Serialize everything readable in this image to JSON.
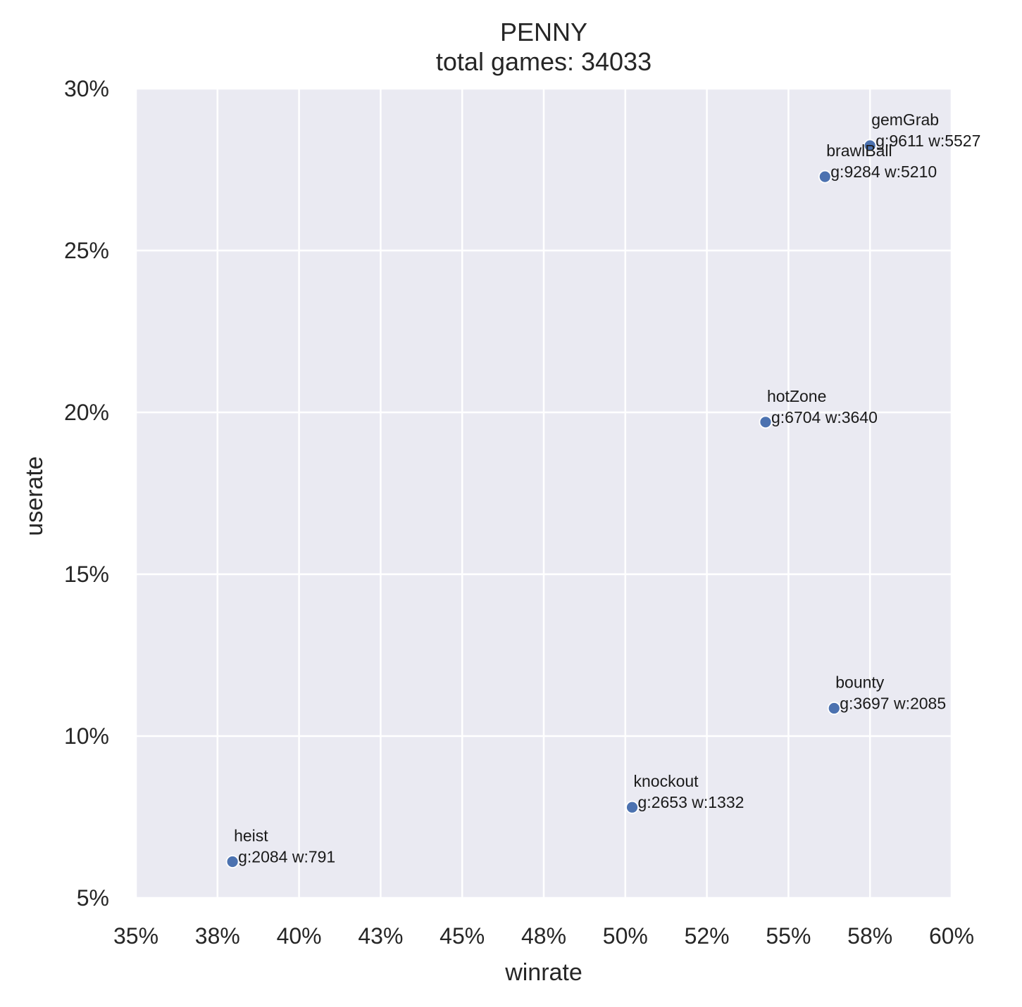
{
  "chart_data": {
    "type": "scatter",
    "title": "PENNY",
    "subtitle": "total games: 34033",
    "xlabel": "winrate",
    "ylabel": "userate",
    "xlim": [
      35,
      60
    ],
    "ylim": [
      5,
      30
    ],
    "grid": true,
    "x_ticks": [
      35,
      37.5,
      40,
      42.5,
      45,
      47.5,
      50,
      52.5,
      55,
      57.5,
      60
    ],
    "x_tick_labels": [
      "35%",
      "38%",
      "40%",
      "43%",
      "45%",
      "48%",
      "50%",
      "52%",
      "55%",
      "58%",
      "60%"
    ],
    "y_ticks": [
      5,
      10,
      15,
      20,
      25,
      30
    ],
    "y_tick_labels": [
      "5%",
      "10%",
      "15%",
      "20%",
      "25%",
      "30%"
    ],
    "colors": {
      "background": "#eaeaf2",
      "grid": "#ffffff",
      "point": "#4c72b0",
      "point_edge": "#ffffff"
    },
    "points": [
      {
        "name": "gemGrab",
        "stats": "g:9611 w:5527",
        "x": 57.5,
        "y": 28.24
      },
      {
        "name": "brawlBall",
        "stats": "g:9284 w:5210",
        "x": 56.12,
        "y": 27.28
      },
      {
        "name": "hotZone",
        "stats": "g:6704 w:3640",
        "x": 54.3,
        "y": 19.7
      },
      {
        "name": "bounty",
        "stats": "g:3697 w:2085",
        "x": 56.4,
        "y": 10.86
      },
      {
        "name": "knockout",
        "stats": "g:2653 w:1332",
        "x": 50.21,
        "y": 7.8
      },
      {
        "name": "heist",
        "stats": "g:2084 w:791",
        "x": 37.96,
        "y": 6.12
      }
    ]
  }
}
